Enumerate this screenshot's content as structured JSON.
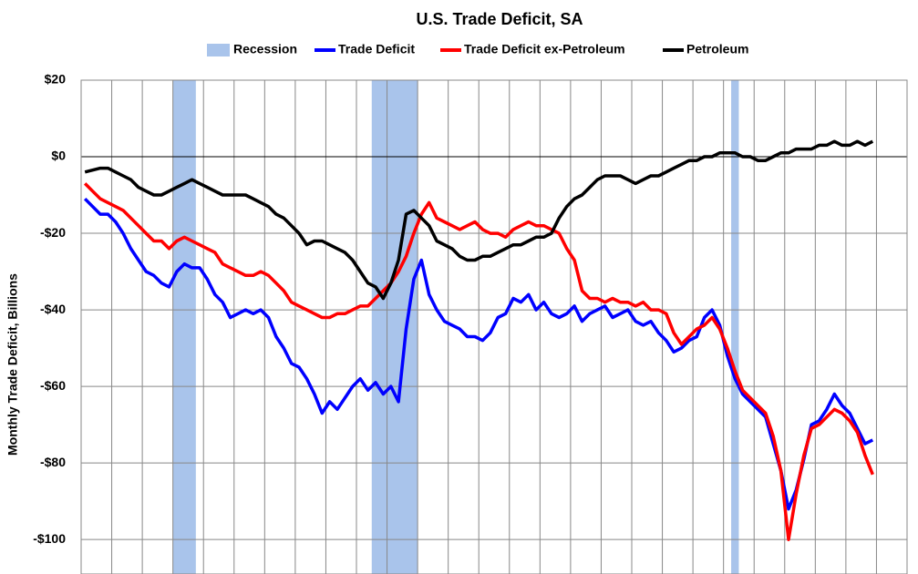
{
  "chart_data": {
    "type": "line",
    "title": "U.S. Trade Deficit, SA",
    "y_label": "Monthly Trade Deficit, Billions",
    "ylim": [
      -109,
      20
    ],
    "yticks": [
      {
        "value": 20,
        "label": "$20"
      },
      {
        "value": 0,
        "label": "$0"
      },
      {
        "value": -20,
        "label": "-$20"
      },
      {
        "value": -40,
        "label": "-$40"
      },
      {
        "value": -60,
        "label": "-$60"
      },
      {
        "value": -80,
        "label": "-$80"
      },
      {
        "value": -100,
        "label": "-$100"
      }
    ],
    "grid": true,
    "recessions": {
      "name": "Recession",
      "color": "#a9c4eb",
      "ranges": [
        [
          12,
          15
        ],
        [
          38,
          44
        ],
        [
          85,
          86
        ]
      ]
    },
    "categories": [
      null,
      null,
      null,
      null,
      null,
      null,
      null,
      null,
      null,
      null,
      null,
      null,
      null,
      null,
      null,
      null,
      null,
      null,
      null,
      null,
      null,
      null,
      null,
      null,
      null,
      null,
      null,
      null,
      null,
      null,
      null,
      null,
      null,
      null,
      null,
      null,
      null,
      null,
      null,
      null,
      null,
      null,
      null,
      null,
      null,
      null,
      null,
      null,
      null,
      null,
      null,
      null,
      null,
      null,
      null,
      null,
      null,
      null,
      null,
      null,
      null,
      null,
      null,
      null,
      null,
      null,
      null,
      null,
      null,
      null,
      null,
      null,
      null,
      null,
      null,
      null,
      null,
      null,
      null,
      null,
      null,
      null,
      null,
      null,
      null,
      null,
      null,
      null,
      null,
      null,
      null,
      null,
      null,
      null,
      null,
      null,
      null,
      null,
      null,
      null,
      null,
      null,
      null,
      null
    ],
    "series": [
      {
        "name": "Trade Deficit",
        "color": "#0000ff",
        "values": [
          -11,
          -13,
          -15,
          -15,
          -17,
          -20,
          -24,
          -27,
          -30,
          -31,
          -33,
          -34,
          -30,
          -28,
          -29,
          -29,
          -32,
          -36,
          -38,
          -42,
          -41,
          -40,
          -41,
          -40,
          -42,
          -47,
          -50,
          -54,
          -55,
          -58,
          -62,
          -67,
          -64,
          -66,
          -63,
          -60,
          -58,
          -61,
          -59,
          -62,
          -60,
          -64,
          -45,
          -32,
          -27,
          -36,
          -40,
          -43,
          -44,
          -45,
          -47,
          -47,
          -48,
          -46,
          -42,
          -41,
          -37,
          -38,
          -36,
          -40,
          -38,
          -41,
          -42,
          -41,
          -39,
          -43,
          -41,
          -40,
          -39,
          -42,
          -41,
          -40,
          -43,
          -44,
          -43,
          -46,
          -48,
          -51,
          -50,
          -48,
          -47,
          -42,
          -40,
          -44,
          -52,
          -58,
          -62,
          -64,
          -66,
          -68,
          -75,
          -82,
          -92,
          -87,
          -79,
          -70,
          -69,
          -66,
          -62,
          -65,
          -67,
          -71,
          -75,
          -74
        ]
      },
      {
        "name": "Trade Deficit ex-Petroleum",
        "color": "#ff0000",
        "values": [
          -7,
          -9,
          -11,
          -12,
          -13,
          -14,
          -16,
          -18,
          -20,
          -22,
          -22,
          -24,
          -22,
          -21,
          -22,
          -23,
          -24,
          -25,
          -28,
          -29,
          -30,
          -31,
          -31,
          -30,
          -31,
          -33,
          -35,
          -38,
          -39,
          -40,
          -41,
          -42,
          -42,
          -41,
          -41,
          -40,
          -39,
          -39,
          -37,
          -35,
          -33,
          -30,
          -26,
          -20,
          -15,
          -12,
          -16,
          -17,
          -18,
          -19,
          -18,
          -17,
          -19,
          -20,
          -20,
          -21,
          -19,
          -18,
          -17,
          -18,
          -18,
          -19,
          -20,
          -24,
          -27,
          -35,
          -37,
          -37,
          -38,
          -37,
          -38,
          -38,
          -39,
          -38,
          -40,
          -40,
          -41,
          -46,
          -49,
          -47,
          -45,
          -44,
          -42,
          -45,
          -50,
          -56,
          -61,
          -63,
          -65,
          -67,
          -73,
          -82,
          -100,
          -88,
          -78,
          -71,
          -70,
          -68,
          -66,
          -67,
          -69,
          -72,
          -78,
          -83
        ]
      },
      {
        "name": "Petroleum",
        "color": "#000000",
        "values": [
          -4,
          -3.5,
          -3,
          -3,
          -4,
          -5,
          -6,
          -8,
          -9,
          -10,
          -10,
          -9,
          -8,
          -7,
          -6,
          -7,
          -8,
          -9,
          -10,
          -10,
          -10,
          -10,
          -11,
          -12,
          -13,
          -15,
          -16,
          -18,
          -20,
          -23,
          -22,
          -22,
          -23,
          -24,
          -25,
          -27,
          -30,
          -33,
          -34,
          -37,
          -33,
          -27,
          -15,
          -14,
          -16,
          -18,
          -22,
          -23,
          -24,
          -26,
          -27,
          -27,
          -26,
          -26,
          -25,
          -24,
          -23,
          -23,
          -22,
          -21,
          -21,
          -20,
          -16,
          -13,
          -11,
          -10,
          -8,
          -6,
          -5,
          -5,
          -5,
          -6,
          -7,
          -6,
          -5,
          -5,
          -4,
          -3,
          -2,
          -1,
          -1,
          0,
          0,
          1,
          1,
          1,
          0,
          0,
          -1,
          -1,
          0,
          1,
          1,
          2,
          2,
          2,
          3,
          3,
          4,
          3,
          3,
          4,
          3,
          4
        ]
      }
    ]
  }
}
